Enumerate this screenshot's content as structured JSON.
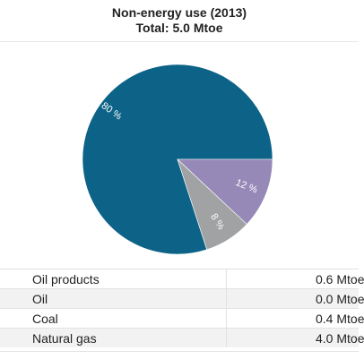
{
  "header": {
    "title": "Non-energy use (2013)",
    "subtitle": "Total: 5.0 Mtoe"
  },
  "chart_data": {
    "type": "pie",
    "total_mtoe": 5.0,
    "slices": [
      {
        "label": "80 %",
        "percent": 80,
        "color": "#0d6287"
      },
      {
        "label": "12 %",
        "percent": 12,
        "color": "#9689b8"
      },
      {
        "label": "8 %",
        "percent": 8,
        "color": "#a0a2a4"
      }
    ]
  },
  "legend": {
    "rows": [
      {
        "name": "Oil products",
        "value": "0.6 Mtoe"
      },
      {
        "name": "Oil",
        "value": "0.0 Mtoe"
      },
      {
        "name": "Coal",
        "value": "0.4 Mtoe"
      },
      {
        "name": "Natural gas",
        "value": "4.0 Mtoe"
      }
    ]
  }
}
